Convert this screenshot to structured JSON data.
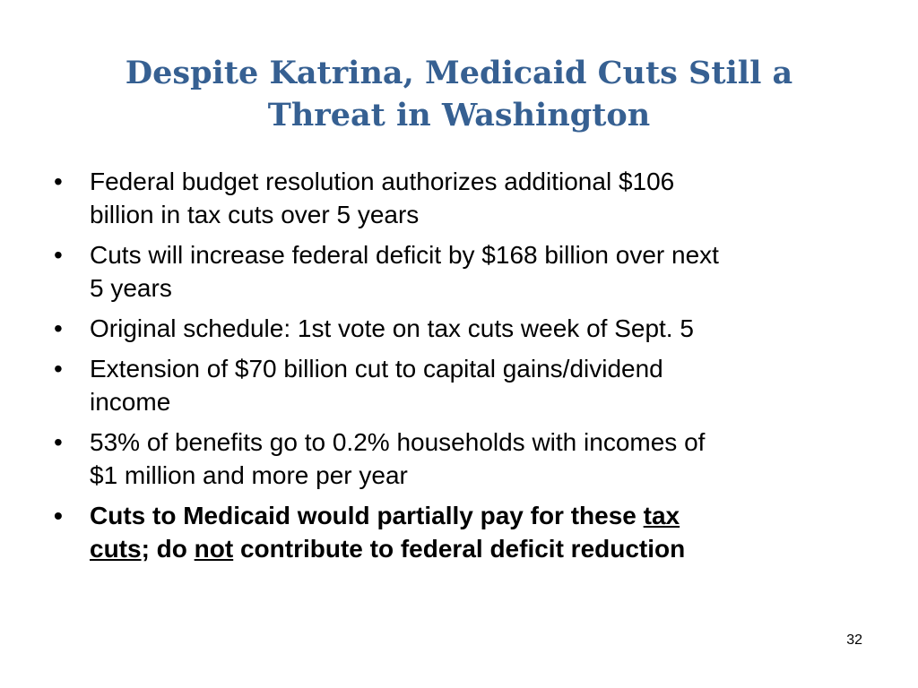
{
  "slide": {
    "title_lines": [
      "Despite Katrina, Medicaid Cuts Still a",
      "Threat in Washington"
    ],
    "bullets": [
      [
        "Federal budget resolution authorizes additional $106",
        "billion in tax cuts over 5 years"
      ],
      [
        "Cuts will increase federal deficit by $168 billion over next",
        "5 years"
      ],
      [
        "Original schedule: 1st vote on tax cuts week of Sept. 5"
      ],
      [
        "Extension of $70 billion cut to capital gains/dividend",
        "income"
      ],
      [
        "53% of benefits go to 0.2% households with incomes of",
        "$1 million and more per year"
      ]
    ],
    "final_bullet": {
      "line1_text": "Cuts to Medicaid would partially pay for these ",
      "line1_underlined": "tax",
      "line2_underlined_1": "cuts",
      "line2_text_1": "; do ",
      "line2_underlined_2": "not",
      "line2_text_2": " contribute to federal deficit reduction"
    },
    "page_number": "32",
    "colors": {
      "title": "#366092",
      "body_text": "#000000",
      "background": "#ffffff"
    }
  }
}
